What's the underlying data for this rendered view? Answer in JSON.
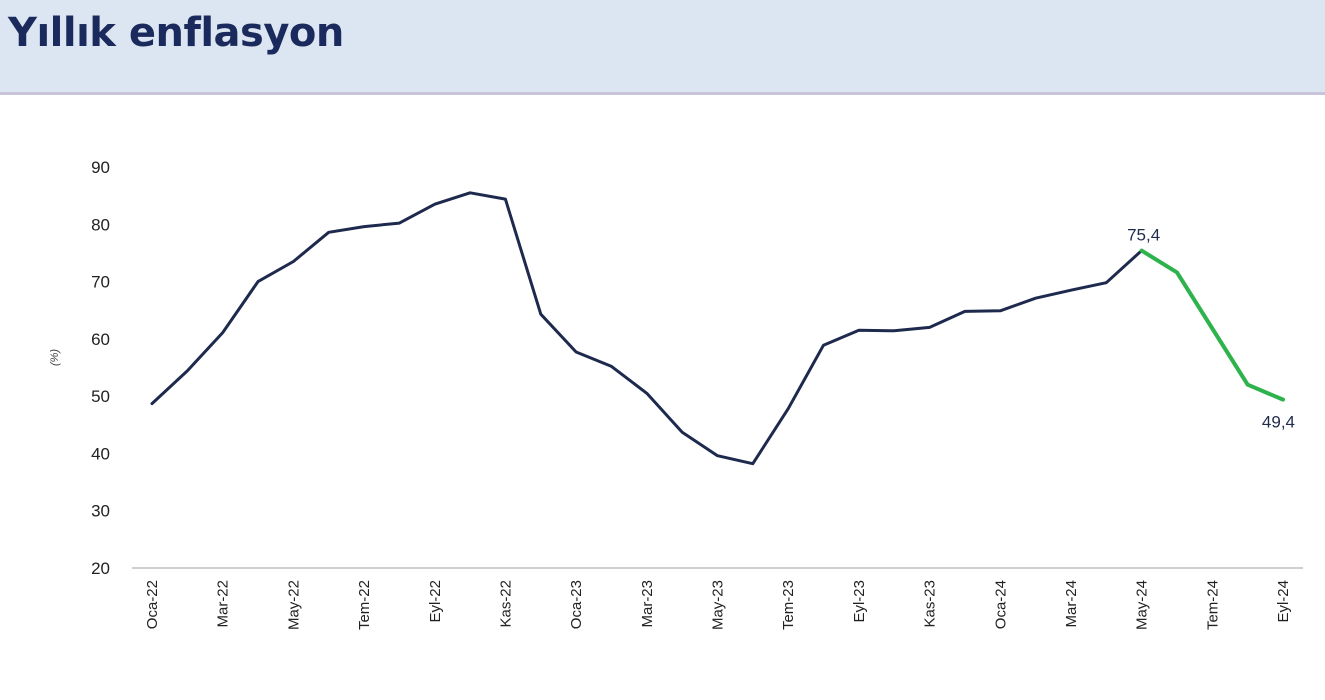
{
  "header": {
    "title": "Yıllık enflasyon"
  },
  "colors": {
    "header_bg": "#dce6f2",
    "title": "#1b2a5c",
    "series_main": "#1e2a4d",
    "series_recent": "#2eb24b"
  },
  "chart_data": {
    "type": "line",
    "title": "Yıllık enflasyon",
    "ylabel": "(%)",
    "xlabel": "",
    "ylim": [
      20,
      90
    ],
    "yticks": [
      90,
      80,
      70,
      60,
      50,
      40,
      30,
      20
    ],
    "grid": false,
    "x": [
      "Oca-22",
      "Şub-22",
      "Mar-22",
      "Nis-22",
      "May-22",
      "Haz-22",
      "Tem-22",
      "Ağu-22",
      "Eyl-22",
      "Eki-22",
      "Kas-22",
      "Ara-22",
      "Oca-23",
      "Şub-23",
      "Mar-23",
      "Nis-23",
      "May-23",
      "Haz-23",
      "Tem-23",
      "Ağu-23",
      "Eyl-23",
      "Eki-23",
      "Kas-23",
      "Ara-23",
      "Oca-24",
      "Şub-24",
      "Mar-24",
      "Nis-24",
      "May-24",
      "Haz-24",
      "Tem-24",
      "Ağu-24",
      "Eyl-24"
    ],
    "xtick_labels": [
      "Oca-22",
      "Mar-22",
      "May-22",
      "Tem-22",
      "Eyl-22",
      "Kas-22",
      "Oca-23",
      "Mar-23",
      "May-23",
      "Tem-23",
      "Eyl-23",
      "Kas-23",
      "Oca-24",
      "Mar-24",
      "May-24",
      "Tem-24",
      "Eyl-24"
    ],
    "series": [
      {
        "values": [
          48.7,
          54.4,
          61.1,
          70.0,
          73.5,
          78.6,
          79.6,
          80.2,
          83.5,
          85.5,
          84.4,
          64.3,
          57.7,
          55.2,
          50.5,
          43.7,
          39.6,
          38.2,
          47.8,
          58.9,
          61.5,
          61.4,
          62.0,
          64.8,
          64.9,
          67.1,
          68.5,
          69.8,
          75.4,
          71.6,
          61.8,
          52.0,
          49.4
        ]
      }
    ],
    "highlight_from": "May-24",
    "annotations": [
      {
        "x": "May-24",
        "text": "75,4"
      },
      {
        "x": "Eyl-24",
        "text": "49,4"
      }
    ]
  }
}
